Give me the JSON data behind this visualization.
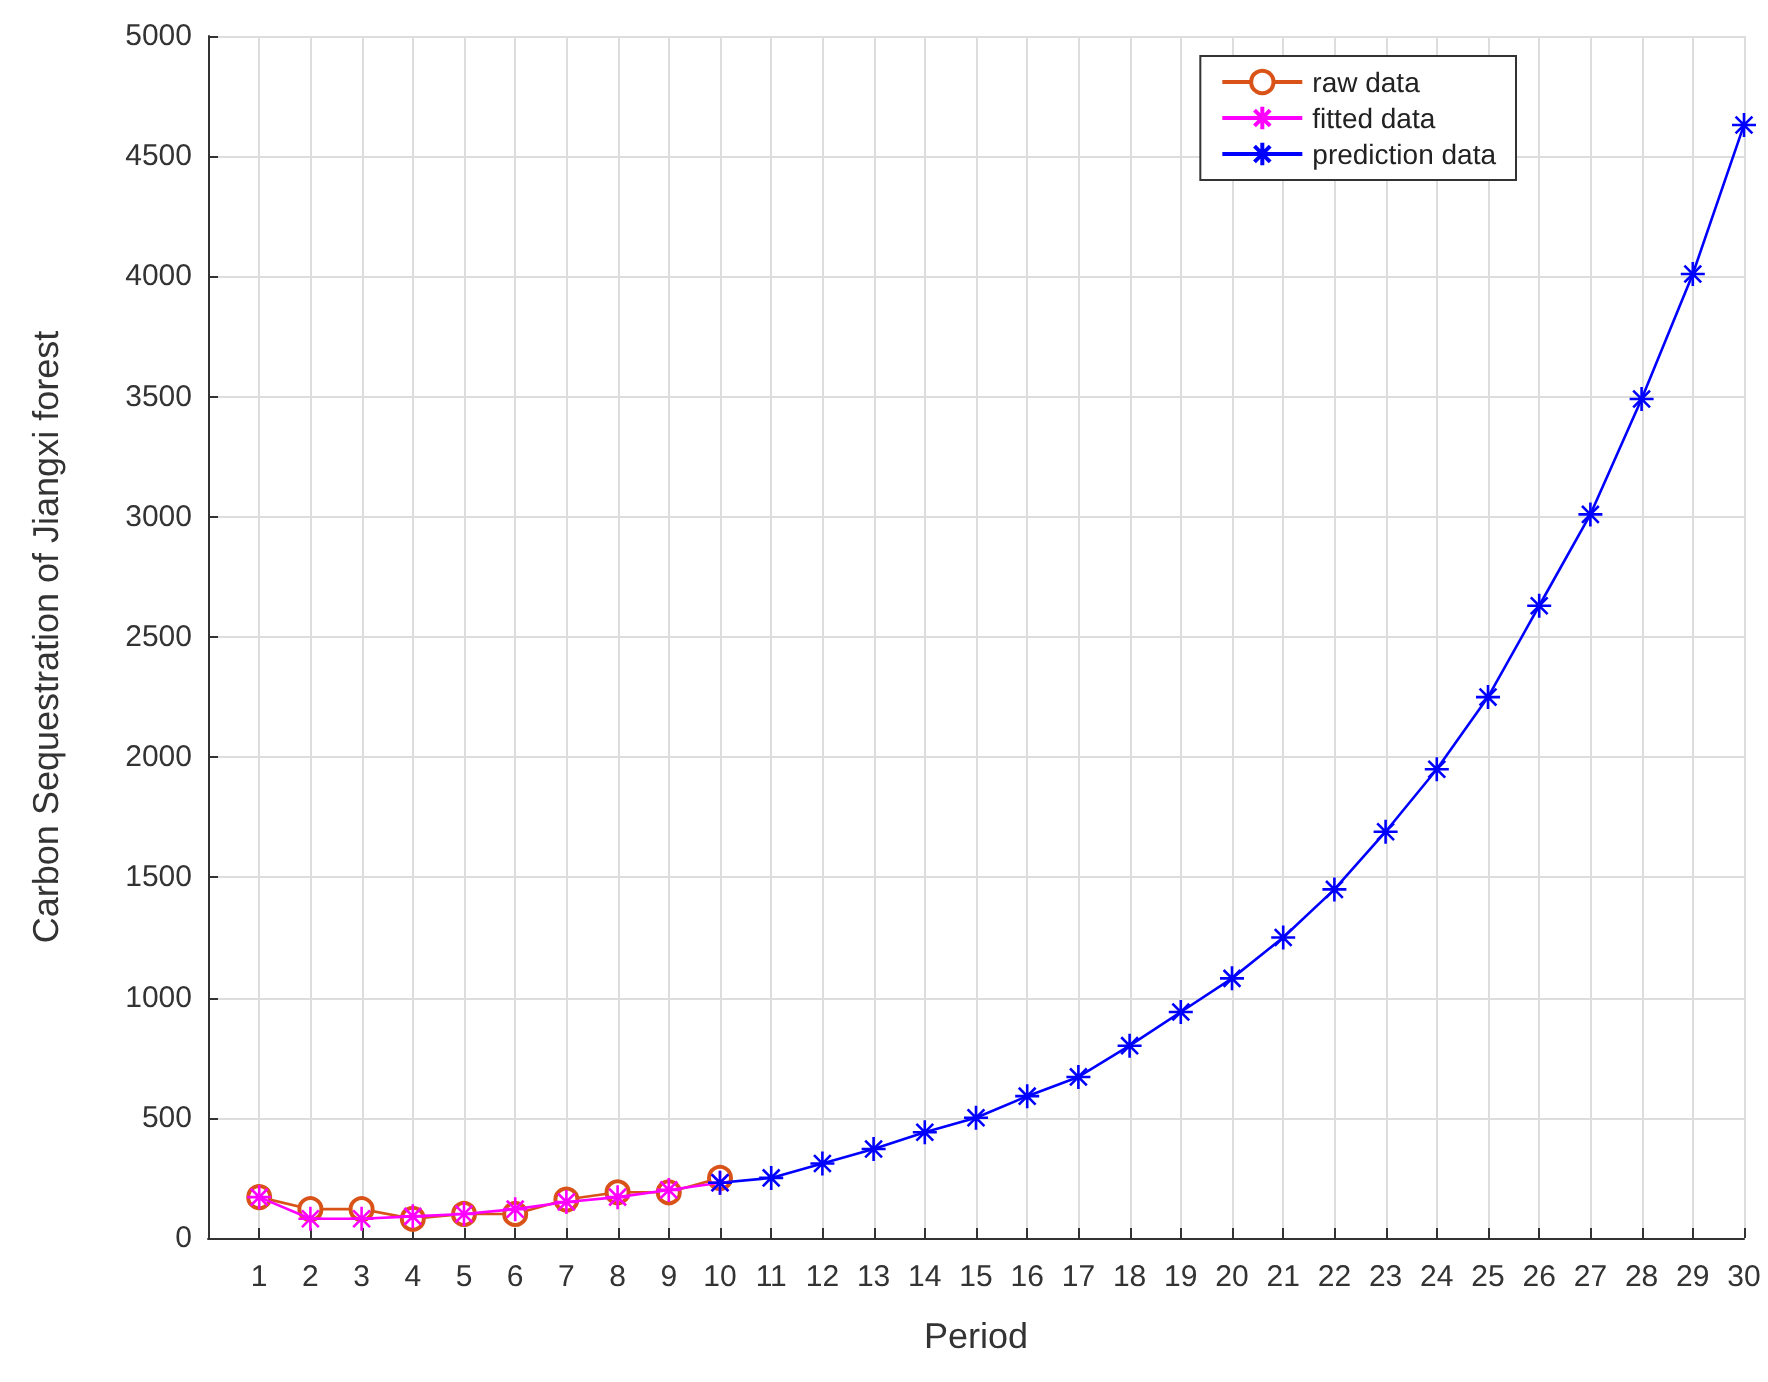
{
  "chart_data": {
    "type": "line",
    "xlabel": "Period",
    "ylabel": "Carbon Sequestration of Jiangxi forest",
    "xlim": [
      0,
      30
    ],
    "xticks": [
      1,
      2,
      3,
      4,
      5,
      6,
      7,
      8,
      9,
      10,
      11,
      12,
      13,
      14,
      15,
      16,
      17,
      18,
      19,
      20,
      21,
      22,
      23,
      24,
      25,
      26,
      27,
      28,
      29,
      30
    ],
    "ylim": [
      0,
      5000
    ],
    "yticks": [
      0,
      500,
      1000,
      1500,
      2000,
      2500,
      3000,
      3500,
      4000,
      4500,
      5000
    ],
    "grid": true,
    "legend": "top right",
    "series": [
      {
        "name": "raw data",
        "color": "#d95319",
        "marker": "circle",
        "x": [
          1,
          2,
          3,
          4,
          5,
          6,
          7,
          8,
          9,
          10
        ],
        "values": [
          170,
          120,
          120,
          80,
          100,
          100,
          160,
          190,
          190,
          250
        ]
      },
      {
        "name": "fitted data",
        "color": "#ff00ff",
        "marker": "cross",
        "x": [
          1,
          2,
          3,
          4,
          5,
          6,
          7,
          8,
          9,
          10
        ],
        "values": [
          170,
          80,
          80,
          90,
          100,
          120,
          150,
          170,
          200,
          230
        ]
      },
      {
        "name": "prediction data",
        "color": "#0000ff",
        "marker": "cross",
        "x": [
          10,
          11,
          12,
          13,
          14,
          15,
          16,
          17,
          18,
          19,
          20,
          21,
          22,
          23,
          24,
          25,
          26,
          27,
          28,
          29,
          30
        ],
        "values": [
          230,
          250,
          310,
          370,
          440,
          500,
          590,
          670,
          800,
          940,
          1080,
          1250,
          1450,
          1690,
          1950,
          2250,
          2630,
          3010,
          3490,
          4010,
          4630
        ]
      }
    ]
  }
}
